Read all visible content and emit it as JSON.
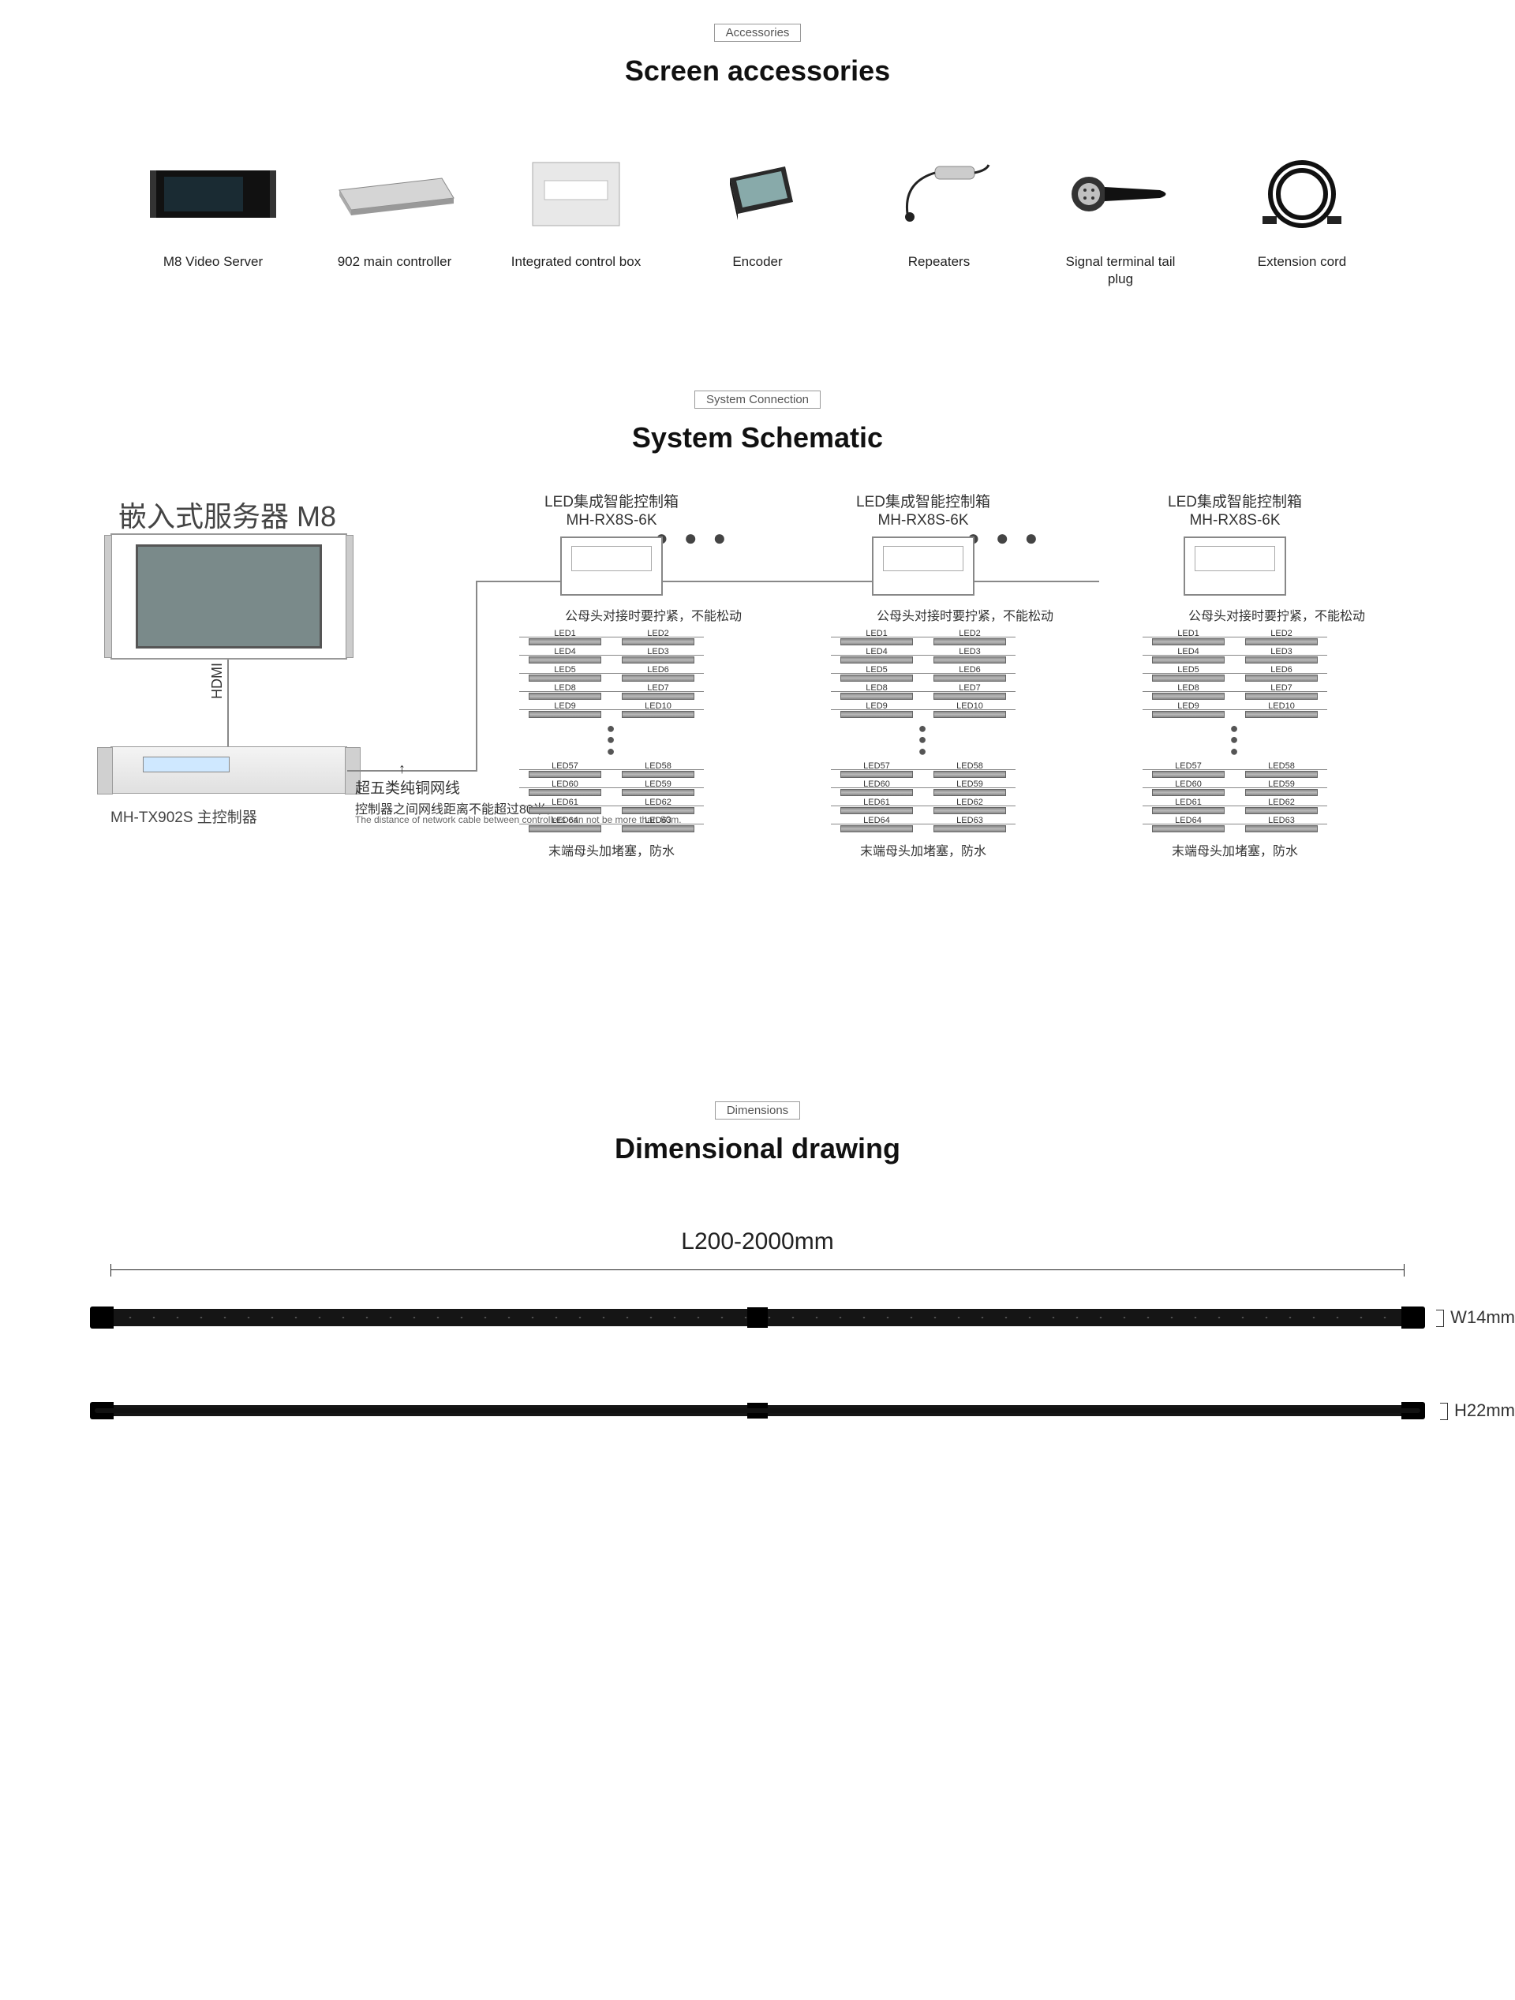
{
  "colors": {
    "bg": "#ffffff",
    "text": "#222222",
    "muted": "#666666",
    "border": "#999999",
    "strip": "#151515"
  },
  "sections": {
    "accessories": {
      "badge": "Accessories",
      "title": "Screen accessories"
    },
    "schematic": {
      "badge": "System Connection",
      "title": "System Schematic"
    },
    "dimensions": {
      "badge": "Dimensions",
      "title": "Dimensional drawing"
    }
  },
  "accessories": [
    {
      "label": "M8 Video Server"
    },
    {
      "label": "902 main controller"
    },
    {
      "label": "Integrated control box"
    },
    {
      "label": "Encoder"
    },
    {
      "label": "Repeaters"
    },
    {
      "label": "Signal terminal tail plug"
    },
    {
      "label": "Extension cord"
    }
  ],
  "schematic": {
    "server_title": "嵌入式服务器 M8",
    "hdmi": "HDMI",
    "controller_label": "MH-TX902S 主控制器",
    "cable_note_title": "超五类纯铜网线",
    "cable_note_cn": "控制器之间网线距离不能超过80米。",
    "cable_note_en": "The distance of network cable between\ncontrollers can not be more than 80m.",
    "branch_title_line1": "LED集成智能控制箱",
    "branch_title_line2": "MH-RX8S-6K",
    "tight_note": "公母头对接时要拧紧，不能松动",
    "end_note": "末端母头加堵塞，防水",
    "led_rows_top": [
      [
        "LED1",
        "LED2"
      ],
      [
        "LED4",
        "LED3"
      ],
      [
        "LED5",
        "LED6"
      ],
      [
        "LED8",
        "LED7"
      ],
      [
        "LED9",
        "LED10"
      ]
    ],
    "led_rows_bottom": [
      [
        "LED57",
        "LED58"
      ],
      [
        "LED60",
        "LED59"
      ],
      [
        "LED61",
        "LED62"
      ],
      [
        "LED64",
        "LED63"
      ]
    ]
  },
  "dimensions": {
    "length_label": "L200-2000mm",
    "width_label": "W14mm",
    "height_label": "H22mm"
  }
}
